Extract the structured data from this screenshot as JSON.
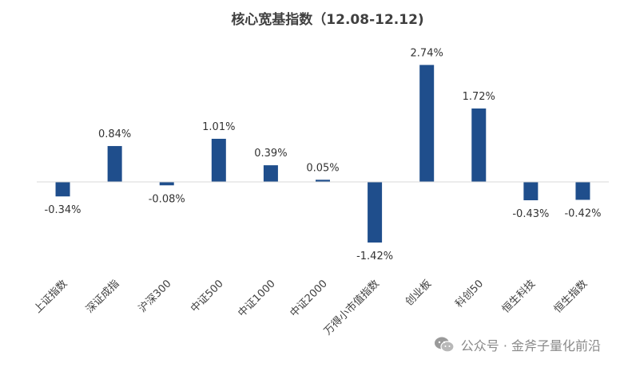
{
  "chart_data": {
    "type": "bar",
    "title": "核心宽基指数（12.08-12.12)",
    "categories": [
      "上证指数",
      "深证成指",
      "沪深300",
      "中证500",
      "中证1000",
      "中证2000",
      "万得小市值指数",
      "创业板",
      "科创50",
      "恒生科技",
      "恒生指数"
    ],
    "values": [
      -0.34,
      0.84,
      -0.08,
      1.01,
      0.39,
      0.05,
      -1.42,
      2.74,
      1.72,
      -0.43,
      -0.42
    ],
    "value_labels": [
      "-0.34%",
      "0.84%",
      "-0.08%",
      "1.01%",
      "0.39%",
      "0.05%",
      "-1.42%",
      "2.74%",
      "1.72%",
      "-0.43%",
      "-0.42%"
    ],
    "unit": "%",
    "bar_color": "#1f4e8c",
    "grid": false,
    "legend": "none"
  },
  "watermark": {
    "text": "公众号 · 金斧子量化前沿",
    "icon": "wechat-icon"
  }
}
